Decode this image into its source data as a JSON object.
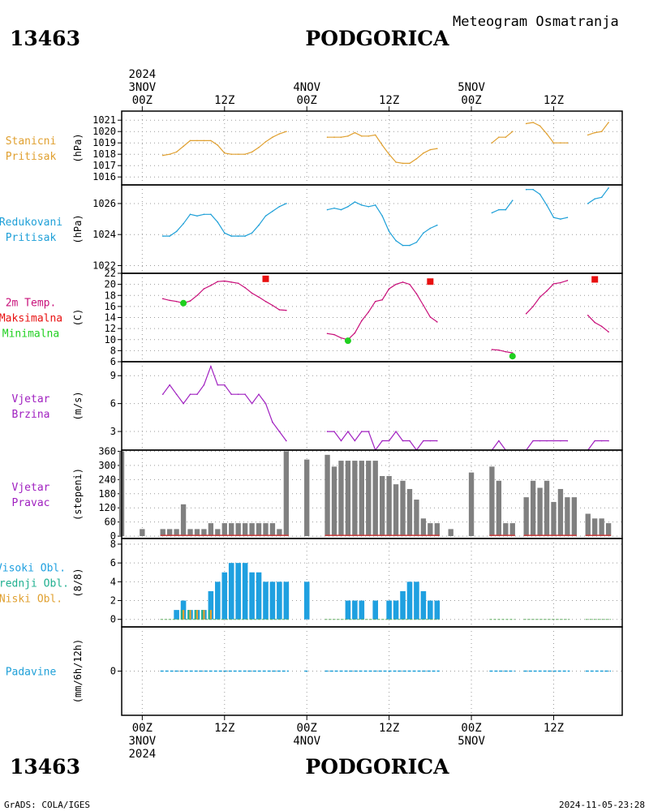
{
  "header": {
    "station_id": "13463",
    "station_name": "PODGORICA",
    "product": "Meteogram Osmatranja"
  },
  "footer": {
    "station_id": "13463",
    "station_name": "PODGORICA",
    "credit": "GrADS: COLA/IGES",
    "timestamp": "2024-11-05-23:28"
  },
  "colors": {
    "station_pressure": "#e0a030",
    "reduced_pressure": "#1fa0d8",
    "temperature": "#c8107a",
    "maximum": "#e81010",
    "minimum": "#20d020",
    "wind": "#a020c0",
    "bar_gray": "#808080",
    "cloud_high": "#1fa0e0",
    "cloud_mid": "#20b090",
    "cloud_low": "#e0a030",
    "precip": "#1fa0d8"
  },
  "time_axis": {
    "top_labels": [
      {
        "h": 0,
        "lines": [
          "2024",
          "3NOV",
          "00Z"
        ]
      },
      {
        "h": 12,
        "lines": [
          "12Z"
        ]
      },
      {
        "h": 24,
        "lines": [
          "4NOV",
          "00Z"
        ]
      },
      {
        "h": 36,
        "lines": [
          "12Z"
        ]
      },
      {
        "h": 48,
        "lines": [
          "5NOV",
          "00Z"
        ]
      },
      {
        "h": 60,
        "lines": [
          "12Z"
        ]
      }
    ],
    "bottom_labels": [
      {
        "h": 0,
        "lines": [
          "00Z",
          "3NOV",
          "2024"
        ]
      },
      {
        "h": 12,
        "lines": [
          "12Z"
        ]
      },
      {
        "h": 24,
        "lines": [
          "00Z",
          "4NOV"
        ]
      },
      {
        "h": 36,
        "lines": [
          "12Z"
        ]
      },
      {
        "h": 48,
        "lines": [
          "00Z",
          "5NOV"
        ]
      },
      {
        "h": 60,
        "lines": [
          "12Z"
        ]
      }
    ],
    "x_range_hours": [
      -3,
      70
    ]
  },
  "chart_data": [
    {
      "type": "line",
      "id": "station_pressure",
      "panel_labels": [
        "Stanicni",
        "Pritisak"
      ],
      "ylabel": "(hPa)",
      "ylim": [
        1015.3,
        1021.8
      ],
      "yticks": [
        1016,
        1017,
        1018,
        1019,
        1020,
        1021
      ],
      "x_hours": [
        3,
        4,
        5,
        6,
        7,
        8,
        9,
        10,
        11,
        12,
        13,
        14,
        15,
        16,
        17,
        18,
        19,
        20,
        21,
        27,
        28,
        29,
        30,
        31,
        32,
        33,
        34,
        35,
        36,
        37,
        38,
        39,
        40,
        41,
        42,
        43,
        51,
        52,
        53,
        54,
        56,
        57,
        58,
        59,
        60,
        61,
        62,
        65,
        66,
        67,
        68
      ],
      "values": [
        1017.9,
        1018.0,
        1018.2,
        1018.7,
        1019.2,
        1019.2,
        1019.2,
        1019.2,
        1018.8,
        1018.1,
        1018.0,
        1018.0,
        1018.0,
        1018.2,
        1018.6,
        1019.1,
        1019.5,
        1019.8,
        1020.0,
        1019.5,
        1019.5,
        1019.5,
        1019.6,
        1019.9,
        1019.6,
        1019.6,
        1019.7,
        1018.8,
        1018.0,
        1017.3,
        1017.2,
        1017.2,
        1017.6,
        1018.1,
        1018.4,
        1018.5,
        1019.0,
        1019.5,
        1019.5,
        1020.0,
        1020.7,
        1020.8,
        1020.5,
        1019.8,
        1019.0,
        1019.0,
        1019.0,
        1019.7,
        1019.9,
        1020.0,
        1020.8
      ],
      "grid": true
    },
    {
      "type": "line",
      "id": "reduced_pressure",
      "panel_labels": [
        "Redukovani",
        "Pritisak"
      ],
      "ylabel": "(hPa)",
      "ylim": [
        1021.5,
        1027.2
      ],
      "yticks": [
        1022,
        1024,
        1026
      ],
      "x_hours": [
        3,
        4,
        5,
        6,
        7,
        8,
        9,
        10,
        11,
        12,
        13,
        14,
        15,
        16,
        17,
        18,
        19,
        20,
        21,
        27,
        28,
        29,
        30,
        31,
        32,
        33,
        34,
        35,
        36,
        37,
        38,
        39,
        40,
        41,
        42,
        43,
        51,
        52,
        53,
        54,
        56,
        57,
        58,
        59,
        60,
        61,
        62,
        65,
        66,
        67,
        68
      ],
      "values": [
        1023.9,
        1023.9,
        1024.2,
        1024.7,
        1025.3,
        1025.2,
        1025.3,
        1025.3,
        1024.8,
        1024.1,
        1023.9,
        1023.9,
        1023.9,
        1024.1,
        1024.6,
        1025.2,
        1025.5,
        1025.8,
        1026.0,
        1025.6,
        1025.7,
        1025.6,
        1025.8,
        1026.1,
        1025.9,
        1025.8,
        1025.9,
        1025.2,
        1024.2,
        1023.6,
        1023.3,
        1023.3,
        1023.5,
        1024.1,
        1024.4,
        1024.6,
        1025.4,
        1025.6,
        1025.6,
        1026.2,
        1026.9,
        1026.9,
        1026.6,
        1025.9,
        1025.1,
        1025.0,
        1025.1,
        1026.0,
        1026.3,
        1026.4,
        1027.0
      ],
      "grid": true
    },
    {
      "type": "line",
      "id": "temperature",
      "panel_labels": [
        "2m Temp.",
        "Maksimalna",
        "Minimalna"
      ],
      "ylabel": "(C)",
      "ylim": [
        6,
        22
      ],
      "yticks": [
        6,
        8,
        10,
        12,
        14,
        16,
        18,
        20,
        22
      ],
      "x_hours": [
        3,
        4,
        5,
        6,
        7,
        8,
        9,
        10,
        11,
        12,
        13,
        14,
        15,
        16,
        17,
        18,
        19,
        20,
        21,
        27,
        28,
        29,
        30,
        31,
        32,
        33,
        34,
        35,
        36,
        37,
        38,
        39,
        40,
        41,
        42,
        43,
        51,
        52,
        53,
        54,
        56,
        57,
        58,
        59,
        60,
        61,
        62,
        65,
        66,
        67,
        68
      ],
      "values": [
        17.4,
        17.1,
        16.9,
        16.6,
        17.0,
        18.0,
        19.2,
        19.8,
        20.5,
        20.6,
        20.4,
        20.2,
        19.4,
        18.4,
        17.7,
        16.9,
        16.2,
        15.4,
        15.3,
        11.1,
        10.9,
        10.3,
        10.0,
        11.2,
        13.4,
        15.0,
        16.9,
        17.2,
        19.2,
        20.0,
        20.4,
        20.0,
        18.3,
        16.2,
        14.1,
        13.2,
        8.2,
        8.1,
        7.8,
        7.6,
        14.7,
        16.0,
        17.7,
        18.8,
        20.1,
        20.3,
        20.7,
        14.4,
        13.1,
        12.4,
        11.4
      ],
      "maxima": [
        {
          "x": 18,
          "y": 21.0
        },
        {
          "x": 42,
          "y": 20.5
        },
        {
          "x": 66,
          "y": 20.9
        }
      ],
      "minima": [
        {
          "x": 6,
          "y": 16.6
        },
        {
          "x": 30,
          "y": 9.8
        },
        {
          "x": 54,
          "y": 7.0
        }
      ],
      "grid": true
    },
    {
      "type": "line",
      "id": "wind_speed",
      "panel_labels": [
        "Vjetar",
        "Brzina"
      ],
      "ylabel": "(m/s)",
      "ylim": [
        1,
        10.5
      ],
      "yticks": [
        3,
        6,
        9
      ],
      "x_hours": [
        3,
        4,
        5,
        6,
        7,
        8,
        9,
        10,
        11,
        12,
        13,
        14,
        15,
        16,
        17,
        18,
        19,
        20,
        21,
        27,
        28,
        29,
        30,
        31,
        32,
        33,
        34,
        35,
        36,
        37,
        38,
        39,
        40,
        41,
        42,
        43,
        51,
        52,
        53,
        56,
        57,
        58,
        59,
        60,
        61,
        62,
        65,
        66,
        67,
        68
      ],
      "values": [
        7,
        8,
        7,
        6,
        7,
        7,
        8,
        10,
        8,
        8,
        7,
        7,
        7,
        6,
        7,
        6,
        4,
        3,
        2,
        3,
        3,
        2,
        3,
        2,
        3,
        3,
        1,
        2,
        2,
        3,
        2,
        2,
        1,
        2,
        2,
        2,
        1,
        2,
        1,
        1,
        2,
        2,
        2,
        2,
        2,
        2,
        1,
        2,
        2,
        2
      ],
      "grid": true
    },
    {
      "type": "bar",
      "id": "wind_direction",
      "panel_labels": [
        "Vjetar",
        "Pravac"
      ],
      "ylabel": "(stepeni)",
      "ylim": [
        -10,
        365
      ],
      "yticks": [
        0,
        60,
        120,
        180,
        240,
        300,
        360
      ],
      "x_hours": [
        -3,
        0,
        3,
        4,
        5,
        6,
        7,
        8,
        9,
        10,
        11,
        12,
        13,
        14,
        15,
        16,
        17,
        18,
        19,
        20,
        21,
        24,
        27,
        28,
        29,
        30,
        31,
        32,
        33,
        34,
        35,
        36,
        37,
        38,
        39,
        40,
        41,
        42,
        43,
        45,
        48,
        51,
        52,
        53,
        54,
        56,
        57,
        58,
        59,
        60,
        61,
        62,
        63,
        65,
        66,
        67,
        68
      ],
      "values": [
        360,
        30,
        30,
        30,
        30,
        135,
        30,
        30,
        30,
        55,
        30,
        55,
        55,
        55,
        55,
        55,
        55,
        55,
        55,
        30,
        360,
        325,
        345,
        295,
        320,
        320,
        320,
        320,
        320,
        320,
        255,
        255,
        220,
        235,
        200,
        155,
        75,
        55,
        55,
        30,
        270,
        295,
        235,
        55,
        55,
        165,
        235,
        205,
        235,
        145,
        200,
        165,
        165,
        95,
        75,
        75,
        55
      ],
      "calm_segments": [
        [
          3,
          21
        ],
        [
          27,
          43
        ],
        [
          51,
          54
        ],
        [
          56,
          63
        ],
        [
          65,
          68
        ]
      ],
      "grid": true
    },
    {
      "type": "bar",
      "id": "cloud_cover",
      "panel_labels": [
        "Visoki Obl.",
        "Srednji Obl.",
        "Niski Obl."
      ],
      "ylabel": "(8/8)",
      "ylim": [
        -0.8,
        8.6
      ],
      "yticks": [
        0,
        2,
        4,
        6,
        8
      ],
      "series": [
        {
          "name": "Visoki Obl.",
          "x_hours": [
            5,
            6,
            7,
            8,
            9,
            10,
            11,
            12,
            13,
            14,
            15,
            16,
            17,
            18,
            19,
            20,
            21,
            24,
            30,
            31,
            32,
            34,
            36,
            37,
            38,
            39,
            40,
            41,
            42,
            43
          ],
          "values": [
            1,
            2,
            1,
            1,
            1,
            3,
            4,
            5,
            6,
            6,
            6,
            5,
            5,
            4,
            4,
            4,
            4,
            4,
            2,
            2,
            2,
            2,
            2,
            2,
            3,
            4,
            4,
            3,
            2,
            2
          ]
        },
        {
          "name": "Srednji Obl.",
          "x_hours": [
            6,
            7,
            8,
            9,
            10
          ],
          "values": [
            1,
            1,
            1,
            1,
            1
          ]
        },
        {
          "name": "Niski Obl.",
          "x_hours": [
            6,
            7,
            8,
            9,
            10
          ],
          "values": [
            1,
            1,
            1,
            1,
            1
          ]
        }
      ],
      "trace_segments": [
        [
          3,
          21
        ],
        [
          27,
          43
        ],
        [
          51,
          54
        ],
        [
          56,
          62
        ],
        [
          65,
          68
        ]
      ],
      "grid": true
    },
    {
      "type": "line",
      "id": "precipitation",
      "panel_labels": [
        "Padavine"
      ],
      "ylabel": "(mm/6h/12h)",
      "ylim": [
        -1,
        1
      ],
      "yticks": [
        0
      ],
      "segments": [
        [
          3,
          21
        ],
        [
          24,
          24
        ],
        [
          27,
          43
        ],
        [
          51,
          54
        ],
        [
          56,
          62
        ],
        [
          65,
          68
        ]
      ],
      "values_mm": 0,
      "grid": true
    }
  ]
}
